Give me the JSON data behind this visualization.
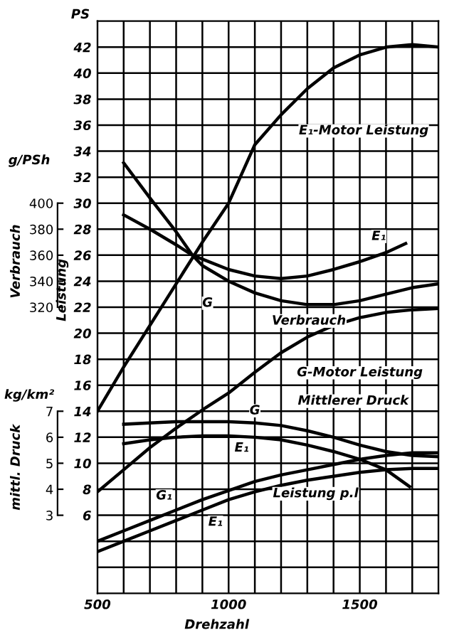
{
  "chart_data": {
    "type": "line",
    "xlabel": "Drehzahl",
    "ylabel": "Leistung",
    "y2label": "Verbrauch",
    "y3label": "mittl. Druck",
    "xlim": [
      500,
      1800
    ],
    "xticks": [
      500,
      {
        "value": 600,
        "label": null
      },
      {
        "value": 700,
        "label": null
      },
      {
        "value": 800,
        "label": null
      },
      {
        "value": 900,
        "label": null
      },
      1000,
      {
        "value": 1100,
        "label": null
      },
      {
        "value": 1200,
        "label": null
      },
      {
        "value": 1300,
        "label": null
      },
      {
        "value": 1400,
        "label": null
      },
      1500,
      {
        "value": 1600,
        "label": null
      },
      {
        "value": 1700,
        "label": null
      },
      {
        "value": 1800,
        "label": null
      }
    ],
    "ylim": [
      0,
      44
    ],
    "yticks": [
      {
        "value": 2,
        "label": null
      },
      {
        "value": 4,
        "label": null
      },
      6,
      8,
      10,
      12,
      14,
      16,
      18,
      20,
      22,
      24,
      26,
      28,
      30,
      32,
      34,
      36,
      38,
      40,
      42
    ],
    "y2lim": [
      100,
      540
    ],
    "y2ticks": [
      320,
      340,
      360,
      380,
      400
    ],
    "y3lim": [
      0,
      22
    ],
    "y3ticks": [
      3,
      4,
      5,
      6,
      7
    ],
    "grid": true,
    "legend": false,
    "marker": "none",
    "line_style": "solid",
    "annotations": [
      "PS",
      "g/PSh",
      "kg/km²",
      "Verbrauch",
      "Mittlerer Druck",
      "Leistung p.l"
    ],
    "series": [
      {
        "name": "E₁-Motor Leistung",
        "color": "#000000",
        "x": [
          500,
          600,
          700,
          800,
          900,
          1000,
          1100,
          1200,
          1300,
          1400,
          1500,
          1600,
          1700,
          1800
        ],
        "values": [
          14,
          17.4,
          20.6,
          23.8,
          27,
          30,
          34.5,
          36.8,
          38.8,
          40.4,
          41.4,
          42,
          42.2,
          42
        ]
      },
      {
        "name": "G-Motor Leistung",
        "color": "#000000",
        "x": [
          500,
          600,
          700,
          800,
          900,
          1000,
          1100,
          1200,
          1300,
          1400,
          1500,
          1600,
          1700,
          1800
        ],
        "values": [
          7.8,
          9.5,
          11.2,
          12.7,
          14.1,
          15.4,
          17,
          18.5,
          19.7,
          20.6,
          21.2,
          21.6,
          21.8,
          21.9
        ]
      },
      {
        "name": "G",
        "color": "#000000",
        "axis": "y2",
        "x": [
          600,
          700,
          800,
          862,
          900,
          1000,
          1100,
          1200,
          1300,
          1400,
          1500,
          1600,
          1700,
          1800
        ],
        "values": [
          431,
          404,
          378,
          360,
          352,
          340,
          331,
          325,
          322,
          322,
          325,
          330,
          335,
          338
        ]
      },
      {
        "name": "E₁",
        "color": "#000000",
        "axis": "y2",
        "x": [
          600,
          700,
          800,
          862,
          900,
          1000,
          1100,
          1200,
          1300,
          1400,
          1500,
          1600,
          1675
        ],
        "values": [
          391,
          380,
          368,
          360,
          357,
          349,
          344,
          342,
          344,
          349,
          355,
          362,
          369
        ]
      },
      {
        "name": "G",
        "color": "#000000",
        "axis": "y3",
        "x": [
          600,
          700,
          800,
          900,
          1000,
          1100,
          1200,
          1300,
          1400,
          1500,
          1600,
          1700,
          1800
        ],
        "values": [
          6.5,
          6.55,
          6.6,
          6.6,
          6.6,
          6.55,
          6.45,
          6.25,
          6.0,
          5.7,
          5.45,
          5.3,
          5.25
        ]
      },
      {
        "name": "E₁",
        "color": "#000000",
        "axis": "y3",
        "x": [
          600,
          700,
          800,
          900,
          1000,
          1100,
          1200,
          1300,
          1400,
          1500,
          1600,
          1690
        ],
        "values": [
          5.75,
          5.9,
          6.0,
          6.05,
          6.05,
          6.0,
          5.9,
          5.7,
          5.45,
          5.15,
          4.75,
          4.1
        ]
      },
      {
        "name": "G₁",
        "color": "#000000",
        "x": [
          500,
          600,
          700,
          800,
          900,
          1000,
          1100,
          1200,
          1300,
          1400,
          1500,
          1600,
          1700,
          1800
        ],
        "values": [
          4.0,
          4.8,
          5.6,
          6.4,
          7.2,
          7.9,
          8.6,
          9.1,
          9.5,
          9.9,
          10.3,
          10.6,
          10.8,
          10.8
        ]
      },
      {
        "name": "E₁",
        "color": "#000000",
        "x": [
          500,
          600,
          700,
          800,
          900,
          1000,
          1100,
          1200,
          1300,
          1400,
          1500,
          1600,
          1700,
          1800
        ],
        "values": [
          3.2,
          4.0,
          4.8,
          5.6,
          6.4,
          7.2,
          7.8,
          8.3,
          8.7,
          9.0,
          9.3,
          9.5,
          9.6,
          9.6
        ]
      }
    ]
  }
}
